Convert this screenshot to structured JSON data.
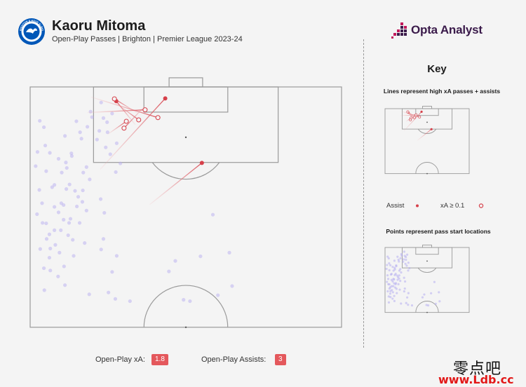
{
  "header": {
    "title": "Kaoru Mitoma",
    "subtitle": "Open-Play Passes | Brighton | Premier League 2023-24",
    "badge_text": "BRIGHTON & HOVE ALBION",
    "logo_text": "Opta Analyst"
  },
  "key": {
    "title": "Key",
    "lines_caption": "Lines represent high xA passes + assists",
    "points_caption": "Points represent pass start locations",
    "assist_label": "Assist",
    "xa_label": "xA ≥ 0.1"
  },
  "stats": {
    "xa_label": "Open-Play xA:",
    "xa_value": "1.8",
    "assists_label": "Open-Play Assists:",
    "assists_value": "3"
  },
  "watermark": {
    "line1": "零点吧",
    "line2": "www.Ldb.cc"
  },
  "colors": {
    "background": "#f4f4f4",
    "pitch_line": "#9a9a9a",
    "point": "#b7aef0",
    "assist": "#d6404a",
    "line_gradient": "#f2b5b8",
    "badge": "#e4585c",
    "brand_dark": "#3a1a4a",
    "brand_accent": "#c2185b"
  },
  "chart_data": {
    "type": "scatter",
    "title": "Kaoru Mitoma",
    "subtitle": "Open-Play Passes | Brighton | Premier League 2023-24",
    "pitch": "half-pitch, attacking direction up; x = 0 (left touchline) to 68 (right touchline), y = 0 (goal line) to 52.5 (halfway line)",
    "pass_start_points": [
      [
        39.9,
        27.9
      ],
      [
        43.5,
        36.2
      ],
      [
        31.7,
        38.0
      ],
      [
        37.2,
        37.0
      ],
      [
        41.0,
        45.5
      ],
      [
        33.5,
        46.5
      ],
      [
        34.9,
        46.8
      ],
      [
        44.1,
        43.5
      ],
      [
        30.3,
        40.3
      ],
      [
        18.9,
        36.9
      ],
      [
        17.9,
        40.4
      ],
      [
        17.1,
        44.9
      ],
      [
        18.6,
        46.3
      ],
      [
        21.8,
        46.8
      ],
      [
        12.9,
        45.3
      ],
      [
        15.5,
        35.5
      ],
      [
        16.0,
        33.2
      ],
      [
        18.9,
        12.3
      ],
      [
        16.5,
        13.2
      ],
      [
        17.5,
        14.7
      ],
      [
        19.7,
        16.7
      ],
      [
        18.7,
        18.6
      ],
      [
        12.3,
        17.5
      ],
      [
        13.0,
        20.2
      ],
      [
        15.4,
        24.5
      ],
      [
        16.2,
        27.5
      ],
      [
        16.8,
        7.7
      ],
      [
        15.1,
        9.6
      ],
      [
        14.6,
        11.5
      ],
      [
        16.9,
        9.9
      ],
      [
        15.5,
        3.4
      ],
      [
        17.9,
        5.8
      ],
      [
        16.0,
        6.8
      ],
      [
        2.1,
        7.4
      ],
      [
        3.0,
        8.8
      ],
      [
        7.6,
        10.7
      ],
      [
        10.9,
        9.9
      ],
      [
        12.5,
        8.7
      ],
      [
        13.5,
        6.6
      ],
      [
        13.2,
        5.4
      ],
      [
        10.1,
        7.5
      ],
      [
        11.2,
        11.3
      ],
      [
        9.1,
        15.1
      ],
      [
        7.8,
        16.5
      ],
      [
        9.0,
        14.5
      ],
      [
        8.0,
        17.7
      ],
      [
        11.6,
        18.7
      ],
      [
        11.5,
        22.6
      ],
      [
        8.6,
        21.3
      ],
      [
        9.8,
        22.7
      ],
      [
        11.4,
        25.1
      ],
      [
        12.3,
        27.0
      ],
      [
        10.2,
        26.1
      ],
      [
        10.8,
        29.7
      ],
      [
        8.5,
        29.7
      ],
      [
        6.2,
        27.4
      ],
      [
        7.3,
        25.8
      ],
      [
        5.3,
        26.2
      ],
      [
        5.3,
        31.3
      ],
      [
        3.6,
        33.2
      ],
      [
        6.4,
        36.2
      ],
      [
        4.2,
        37.3
      ],
      [
        4.4,
        40.1
      ],
      [
        6.1,
        41.4
      ],
      [
        7.4,
        39.2
      ],
      [
        7.6,
        43.3
      ],
      [
        3.1,
        44.4
      ],
      [
        3.0,
        39.6
      ],
      [
        2.7,
        29.7
      ],
      [
        2.6,
        25.4
      ],
      [
        2.0,
        22.5
      ],
      [
        3.5,
        18.4
      ],
      [
        1.2,
        17.3
      ],
      [
        1.6,
        14.2
      ],
      [
        3.3,
        12.8
      ],
      [
        4.8,
        21.9
      ],
      [
        4.2,
        32.2
      ],
      [
        4.4,
        35.3
      ],
      [
        3.5,
        29.8
      ],
      [
        5.5,
        34.5
      ],
      [
        9.5,
        36.9
      ],
      [
        11.9,
        34.1
      ],
      [
        8.8,
        28.8
      ],
      [
        10.5,
        24.0
      ],
      [
        8.3,
        32.4
      ],
      [
        6.7,
        31.3
      ],
      [
        7.9,
        22.3
      ],
      [
        6.2,
        15.7
      ],
      [
        2.2,
        35.4
      ],
      [
        1.5,
        27.8
      ],
      [
        5.3,
        21.4
      ],
      [
        6.8,
        25.4
      ],
      [
        6.9,
        18.7
      ],
      [
        7.3,
        29.0
      ],
      [
        9.3,
        33.4
      ],
      [
        4.3,
        14.4
      ]
    ],
    "key_passes": [
      {
        "type": "assist",
        "from": [
          15.3,
          18.0
        ],
        "to": [
          29.5,
          2.5
        ]
      },
      {
        "type": "assist",
        "from": [
          26.1,
          25.7
        ],
        "to": [
          37.5,
          16.6
        ]
      },
      {
        "type": "assist",
        "from": [
          23.0,
          8.3
        ],
        "to": [
          18.8,
          3.1
        ]
      },
      {
        "type": "high_xa",
        "from": [
          18.8,
          3.6
        ],
        "to": [
          23.7,
          7.2
        ]
      },
      {
        "type": "high_xa",
        "from": [
          23.6,
          5.8
        ],
        "to": [
          18.4,
          2.6
        ]
      },
      {
        "type": "high_xa",
        "from": [
          25.1,
          4.1
        ],
        "to": [
          20.5,
          9.0
        ]
      },
      {
        "type": "high_xa",
        "from": [
          13.3,
          2.2
        ],
        "to": [
          27.9,
          6.7
        ]
      },
      {
        "type": "high_xa",
        "from": [
          12.5,
          5.6
        ],
        "to": [
          25.1,
          5.0
        ]
      },
      {
        "type": "high_xa",
        "from": [
          17.0,
          10.3
        ],
        "to": [
          21.0,
          7.5
        ]
      }
    ]
  }
}
